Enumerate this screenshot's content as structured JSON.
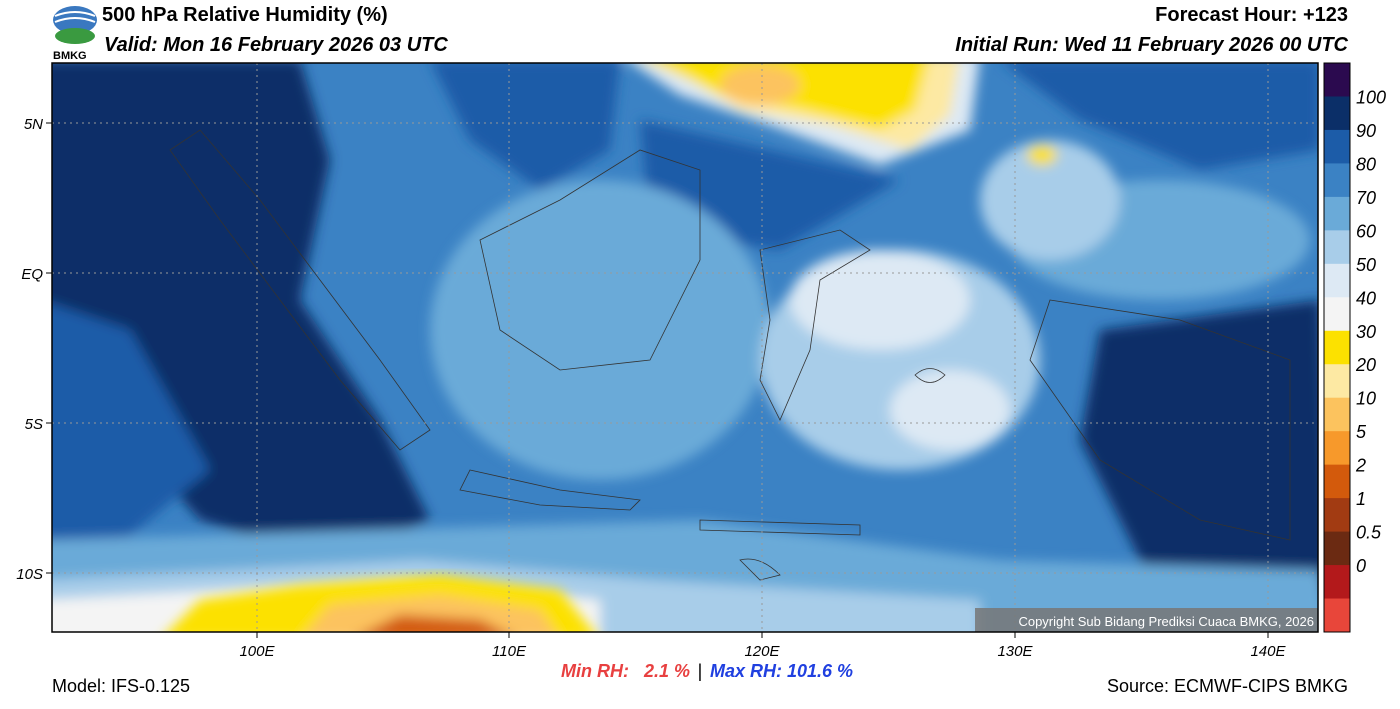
{
  "header": {
    "title": "500 hPa Relative Humidity (%)",
    "valid": "Valid: Mon 16 February 2026 03 UTC",
    "forecast_hour": "Forecast Hour: +123",
    "initial_run": "Initial Run: Wed 11 February 2026 00 UTC",
    "logo": "BMKG"
  },
  "map": {
    "lat_labels": [
      "5N",
      "EQ",
      "5S",
      "10S"
    ],
    "lon_labels": [
      "100E",
      "110E",
      "120E",
      "130E",
      "140E"
    ],
    "copyright": "Copyright Sub Bidang Prediksi Cuaca BMKG, 2026"
  },
  "colorbar": {
    "labels": [
      "100",
      "90",
      "80",
      "70",
      "60",
      "50",
      "40",
      "30",
      "20",
      "10",
      "5",
      "2",
      "1",
      "0.5",
      "0"
    ],
    "colors": [
      "#2b0a4f",
      "#0b2f68",
      "#1c5ca8",
      "#3b82c4",
      "#6aaad8",
      "#a8cde9",
      "#dde9f4",
      "#f4f4f4",
      "#fce100",
      "#fde9a3",
      "#fcc35e",
      "#f7992b",
      "#d35a0c",
      "#a23b12",
      "#6b2a12",
      "#b3191b",
      "#e8463a"
    ]
  },
  "footer": {
    "model": "Model: IFS-0.125",
    "min_rh": "Min RH:   2.1 %",
    "separator": "|",
    "max_rh": "Max RH: 101.6 %",
    "source": "Source: ECMWF-CIPS BMKG"
  }
}
